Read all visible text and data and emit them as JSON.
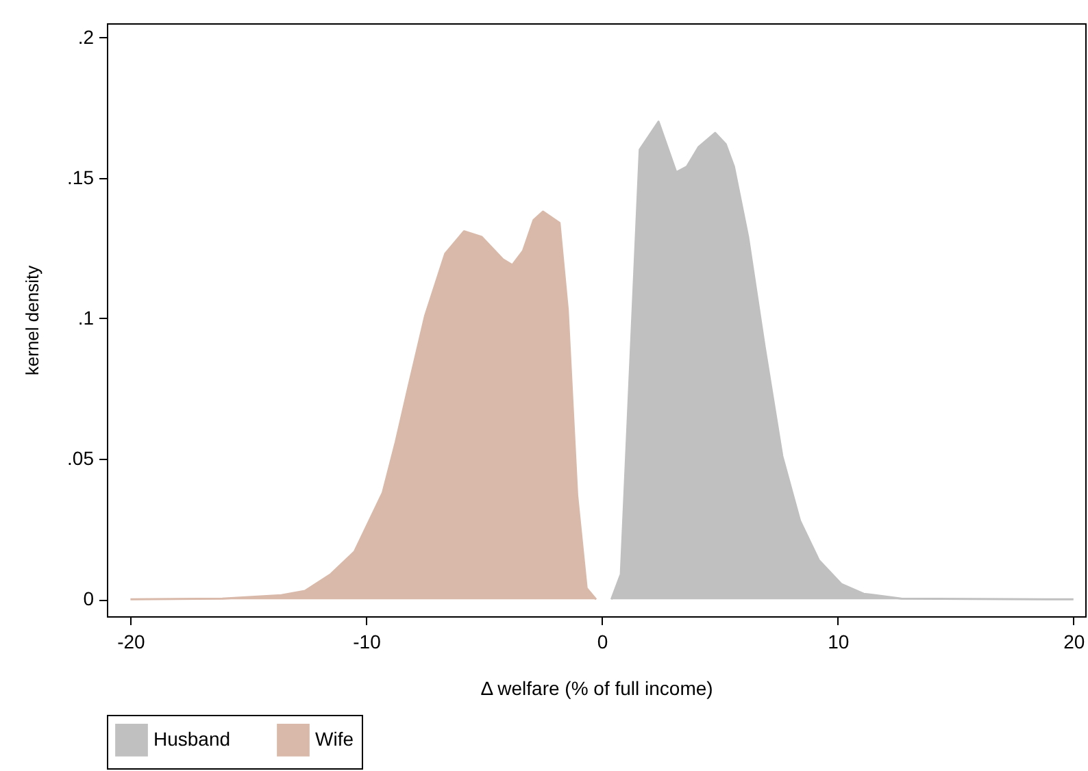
{
  "chart_data": {
    "type": "area",
    "xlabel": "Δ welfare (% of full income)",
    "ylabel": "kernel density",
    "xlim": [
      -21,
      20.5
    ],
    "ylim": [
      -0.006,
      0.205
    ],
    "xticks": [
      -20,
      -10,
      0,
      10,
      20
    ],
    "yticks": [
      0,
      {
        "value": 0.05,
        "label": ".05"
      },
      {
        "value": 0.1,
        "label": ".1"
      },
      {
        "value": 0.15,
        "label": ".15"
      },
      {
        "value": 0.2,
        "label": ".2"
      }
    ],
    "grid": false,
    "legend": "bottom",
    "series": [
      {
        "name": "Husband",
        "color": "#c0c0c0",
        "x": [
          0.4,
          0.8,
          1.6,
          2.4,
          3.15,
          3.6,
          4.1,
          4.8,
          5.25,
          5.6,
          6.2,
          6.9,
          7.65,
          8.4,
          9.2,
          10.15,
          11.1,
          12.7,
          20
        ],
        "values": [
          0,
          0.009,
          0.16,
          0.17,
          0.152,
          0.154,
          0.161,
          0.166,
          0.162,
          0.154,
          0.129,
          0.09,
          0.051,
          0.028,
          0.014,
          0.0055,
          0.002,
          0.0003,
          0
        ]
      },
      {
        "name": "Wife",
        "color": "#d9b9a9",
        "x": [
          -20,
          -16.1,
          -13.6,
          -12.6,
          -11.5,
          -10.5,
          -9.3,
          -8.75,
          -8.2,
          -7.5,
          -6.65,
          -5.85,
          -5.1,
          -4.2,
          -3.8,
          -3.35,
          -2.9,
          -2.5,
          -1.8,
          -1.45,
          -1.05,
          -0.65,
          -0.25
        ],
        "values": [
          0,
          0.0003,
          0.0015,
          0.003,
          0.009,
          0.017,
          0.038,
          0.056,
          0.076,
          0.101,
          0.123,
          0.131,
          0.129,
          0.121,
          0.119,
          0.124,
          0.135,
          0.138,
          0.134,
          0.103,
          0.037,
          0.004,
          0
        ]
      }
    ]
  }
}
